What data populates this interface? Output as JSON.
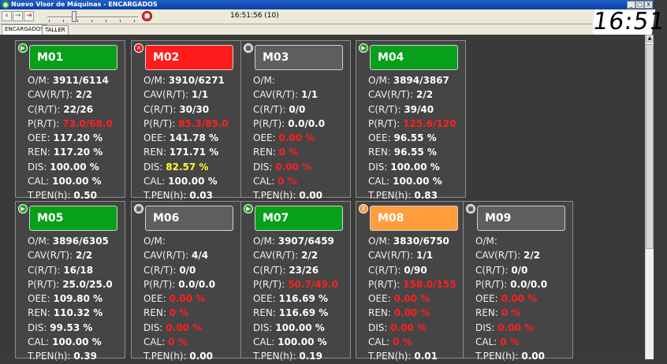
{
  "window": {
    "title": "Nuevo Visor de Máquinas - ENCARGADOS",
    "minimize": "_",
    "maximize": "□",
    "close": "X"
  },
  "toolbar": {
    "back_label": "‹",
    "forward_label": "→",
    "exit_label": "⇥",
    "stop_label": "■",
    "timestamp": "16:51:56 (10)"
  },
  "clock": "16:51",
  "tabs": [
    {
      "label": "ENCARGADOS"
    },
    {
      "label": "TALLER"
    }
  ],
  "labels": {
    "om": "O/M:",
    "cav": "CAV(R/T):",
    "c": "C(R/T):",
    "p": "P(R/T):",
    "oee": "OEE:",
    "ren": "REN:",
    "dis": "DIS:",
    "cal": "CAL:",
    "tpen": "T.PEN(h):"
  },
  "colors": {
    "running": "#06a01a",
    "alarm": "#ff1c1c",
    "stopped": "#5e5e5e",
    "paused": "#ff9e3a",
    "bad_value": "#ff2020",
    "warn_value": "#ffff30"
  },
  "machines": [
    {
      "name": "M01",
      "status": "running",
      "status_icon": "play-icon",
      "om": "3911/6114",
      "cav": "2/2",
      "c": "22/26",
      "p": "73.0/68.0",
      "oee": "117.20 %",
      "ren": "117.20 %",
      "dis": "100.00 %",
      "cal": "100.00 %",
      "tpen": "0.50"
    },
    {
      "name": "M02",
      "status": "alarm",
      "status_icon": "wrench-icon",
      "om": "3910/6271",
      "cav": "1/1",
      "c": "30/30",
      "p": "85.3/85.0",
      "oee": "141.78 %",
      "ren": "171.71 %",
      "dis": "82.57 %",
      "cal": "100.00 %",
      "tpen": "0.03"
    },
    {
      "name": "M03",
      "status": "stopped",
      "status_icon": "stop-icon",
      "om": "",
      "cav": "1/1",
      "c": "0/0",
      "p": "0.0/0.0",
      "oee": "0.00 %",
      "ren": "0 %",
      "dis": "0.00 %",
      "cal": "0 %",
      "tpen": "0.00"
    },
    {
      "name": "M04",
      "status": "running",
      "status_icon": "play-icon",
      "om": "3894/3867",
      "cav": "2/2",
      "c": "39/40",
      "p": "125.6/120",
      "oee": "96.55 %",
      "ren": "96.55 %",
      "dis": "100.00 %",
      "cal": "100.00 %",
      "tpen": "0.83"
    },
    {
      "name": "M05",
      "status": "running",
      "status_icon": "play-icon",
      "om": "3896/6305",
      "cav": "2/2",
      "c": "16/18",
      "p": "25.0/25.0",
      "oee": "109.80 %",
      "ren": "110.32 %",
      "dis": "99.53 %",
      "cal": "100.00 %",
      "tpen": "0.39"
    },
    {
      "name": "M06",
      "status": "stopped",
      "status_icon": "stop-icon",
      "om": "",
      "cav": "4/4",
      "c": "0/0",
      "p": "0.0/0.0",
      "oee": "0.00 %",
      "ren": "0 %",
      "dis": "0.00 %",
      "cal": "0 %",
      "tpen": "0.00"
    },
    {
      "name": "M07",
      "status": "running",
      "status_icon": "play-icon",
      "om": "3907/6459",
      "cav": "2/2",
      "c": "23/26",
      "p": "50.7/49.0",
      "oee": "116.69 %",
      "ren": "116.69 %",
      "dis": "100.00 %",
      "cal": "100.00 %",
      "tpen": "0.19"
    },
    {
      "name": "M08",
      "status": "paused",
      "status_icon": "pause-icon",
      "om": "3830/6750",
      "cav": "1/1",
      "c": "0/90",
      "p": "158.0/155",
      "oee": "0.00 %",
      "ren": "0.00 %",
      "dis": "0.00 %",
      "cal": "0 %",
      "tpen": "0.01"
    },
    {
      "name": "M09",
      "status": "stopped",
      "status_icon": "stop-icon",
      "om": "",
      "cav": "2/2",
      "c": "0/0",
      "p": "0.0/0.0",
      "oee": "0.00 %",
      "ren": "0 %",
      "dis": "0.00 %",
      "cal": "0 %",
      "tpen": "0.00"
    }
  ]
}
